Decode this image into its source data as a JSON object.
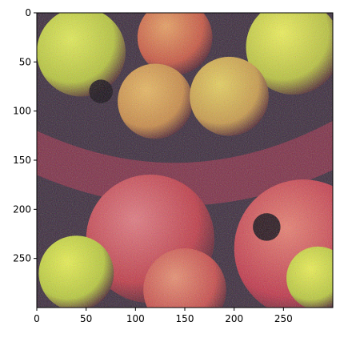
{
  "chart_data": {
    "type": "heatmap",
    "image": "noisy photograph of red and yellow-green apples in a fabric basket",
    "xlim": [
      0,
      300
    ],
    "ylim": [
      300,
      0
    ],
    "xticks": [
      0,
      50,
      100,
      150,
      200,
      250
    ],
    "yticks": [
      0,
      50,
      100,
      150,
      200,
      250
    ],
    "xtick_labels": [
      "0",
      "50",
      "100",
      "150",
      "200",
      "250"
    ],
    "ytick_labels": [
      "0",
      "50",
      "100",
      "150",
      "200",
      "250"
    ],
    "title": "",
    "xlabel": "",
    "ylabel": "",
    "grid": false,
    "apples": [
      {
        "cx": 45,
        "cy": 40,
        "r": 45,
        "color": "#b5c43a",
        "highlight": "#e2ec55"
      },
      {
        "cx": 140,
        "cy": 25,
        "r": 38,
        "color": "#c8553f",
        "highlight": "#e8a060"
      },
      {
        "cx": 260,
        "cy": 35,
        "r": 48,
        "color": "#b8c23c",
        "highlight": "#eef058"
      },
      {
        "cx": 120,
        "cy": 90,
        "r": 38,
        "color": "#c88a45",
        "highlight": "#e8b860"
      },
      {
        "cx": 195,
        "cy": 85,
        "r": 40,
        "color": "#c89a48",
        "highlight": "#e6d05c"
      },
      {
        "cx": 115,
        "cy": 230,
        "r": 65,
        "color": "#c03a45",
        "highlight": "#e07a80"
      },
      {
        "cx": 270,
        "cy": 240,
        "r": 70,
        "color": "#c03548",
        "highlight": "#e88070"
      },
      {
        "cx": 40,
        "cy": 265,
        "r": 38,
        "color": "#b6c83a",
        "highlight": "#e8f050"
      },
      {
        "cx": 285,
        "cy": 270,
        "r": 32,
        "color": "#b8c83c",
        "highlight": "#ecf052"
      },
      {
        "cx": 150,
        "cy": 282,
        "r": 42,
        "color": "#c84a48",
        "highlight": "#e89070"
      }
    ],
    "dark_spots": [
      {
        "cx": 65,
        "cy": 80,
        "r": 12
      },
      {
        "cx": 233,
        "cy": 218,
        "r": 14
      }
    ],
    "colors": {
      "background": "#3a2a3a",
      "basket": "#8a3048"
    }
  }
}
